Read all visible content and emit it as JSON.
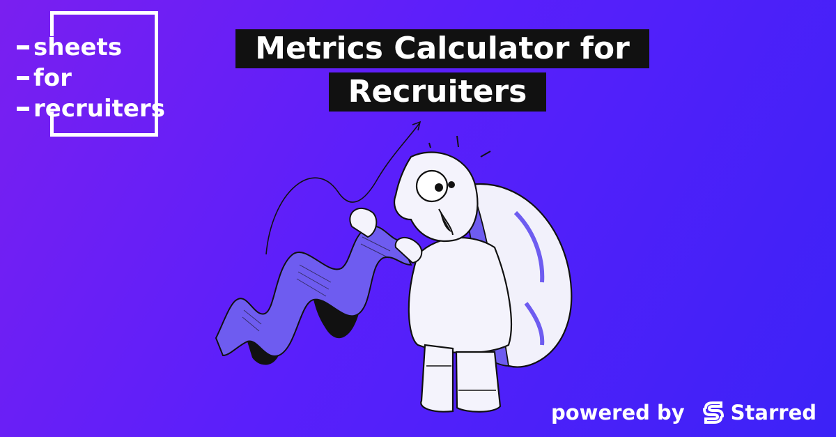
{
  "logo": {
    "lines": [
      "sheets",
      "for",
      "recruiters"
    ]
  },
  "title": {
    "line1": "Metrics Calculator for",
    "line2": "Recruiters"
  },
  "footer": {
    "powered_label": "powered by",
    "brand_name": "Starred"
  },
  "colors": {
    "background_start": "#7a1ff0",
    "background_end": "#3c22f7",
    "title_box": "#111111",
    "illustration_shade": "#6e5cf0"
  },
  "icons": [
    "turtle-illustration",
    "receipt-scroll-icon",
    "upward-arrow-icon",
    "starred-logo-icon"
  ]
}
